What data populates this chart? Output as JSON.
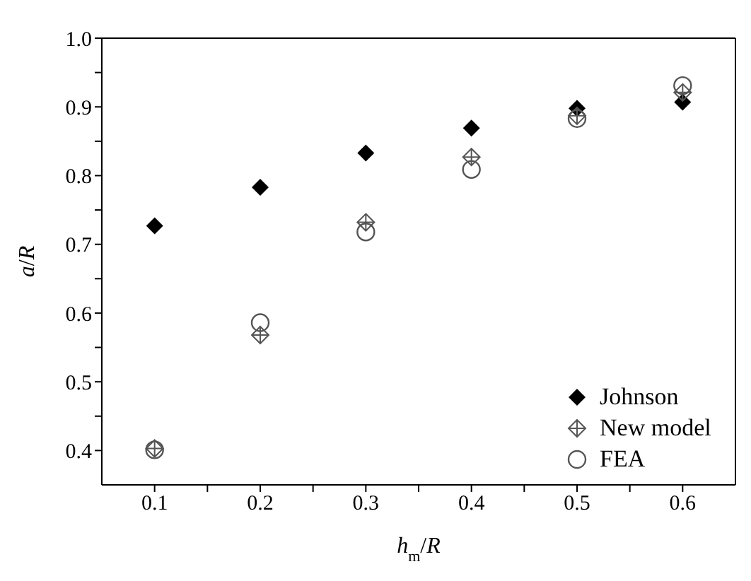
{
  "chart_data": {
    "type": "scatter",
    "xlabel": "h$_{m}$/R",
    "ylabel": "a/R",
    "x": [
      0.1,
      0.2,
      0.3,
      0.4,
      0.5,
      0.6
    ],
    "series": [
      {
        "name": "Johnson",
        "color": "#000000",
        "marker": "diamond",
        "values": [
          0.727,
          0.783,
          0.833,
          0.869,
          0.898,
          0.907
        ]
      },
      {
        "name": "New model",
        "color": "#555555",
        "marker": "cross",
        "values": [
          0.403,
          0.568,
          0.732,
          0.827,
          0.887,
          0.921
        ]
      },
      {
        "name": "FEA",
        "color": "#555555",
        "marker": "circle",
        "values": [
          0.401,
          0.586,
          0.718,
          0.809,
          0.883,
          0.931
        ]
      }
    ],
    "xlim": [
      0.05,
      0.65
    ],
    "xticks": [
      0.1,
      {
        "value": 0.15,
        "label": null
      },
      0.2,
      {
        "value": 0.25,
        "label": null
      },
      0.3,
      {
        "value": 0.35,
        "label": null
      },
      0.4,
      {
        "value": 0.45,
        "label": null
      },
      0.5,
      {
        "value": 0.55,
        "label": null
      },
      0.6
    ],
    "ylim": [
      0.35,
      1.0
    ],
    "yticks": [
      0.4,
      {
        "value": 0.45,
        "label": null
      },
      0.5,
      {
        "value": 0.55,
        "label": null
      },
      0.6,
      {
        "value": 0.65,
        "label": null
      },
      0.7,
      {
        "value": 0.75,
        "label": null
      },
      0.8,
      {
        "value": 0.85,
        "label": null
      },
      0.9,
      {
        "value": 0.95,
        "label": null
      },
      {
        "value": 1.0,
        "label": "1.0"
      }
    ],
    "grid": false,
    "legend": "bottom right"
  }
}
